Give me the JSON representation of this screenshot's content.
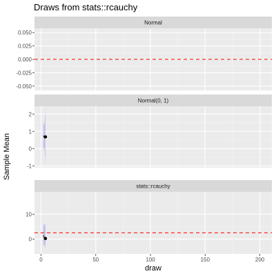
{
  "chart_data": {
    "type": "line",
    "title": "Draws from stats::rcauchy",
    "xlabel": "draw",
    "ylabel": "Sample Mean",
    "xlim": [
      -6,
      211
    ],
    "x_ticks": [
      0,
      50,
      100,
      150,
      200
    ],
    "x_minor_ticks": [
      25,
      75,
      125,
      175
    ],
    "grid": true,
    "colors": {
      "panel_bg": "#ebebeb",
      "grid_major": "#ffffff",
      "grid_minor": "#f5f5f5",
      "strip_bg": "#d9d9d9",
      "ribbon": "#0000ff",
      "point": "#000000",
      "reference_line": "#ff0000"
    },
    "panels": [
      {
        "label": "Normal",
        "ylim": [
          -0.058,
          0.058
        ],
        "y_ticks": [
          -0.05,
          -0.025,
          0.0,
          0.025,
          0.05
        ],
        "y_tick_labels": [
          "-0.050",
          "-0.025",
          "0.000",
          "0.025",
          "0.050"
        ],
        "reference_line": 0,
        "series": []
      },
      {
        "label": "Normal(0, 1)",
        "ylim": [
          -1.1,
          2.45
        ],
        "y_ticks": [
          -1,
          0,
          1,
          2
        ],
        "y_tick_labels": [
          "-1",
          "0",
          "1",
          "2"
        ],
        "reference_line": null,
        "series": [
          {
            "x": [
              2,
              3,
              4
            ],
            "mean": [
              0.75,
              0.65,
              0.68
            ],
            "lower": [
              -0.1,
              0.1,
              -0.9
            ],
            "upper": [
              1.6,
              1.3,
              2.3
            ]
          }
        ]
      },
      {
        "label": "stats::rcauchy",
        "ylim": [
          -6,
          19
        ],
        "y_ticks": [
          0,
          10
        ],
        "y_tick_labels": [
          "0",
          "10"
        ],
        "reference_line": 2.5,
        "series": [
          {
            "x": [
              2,
              3,
              4
            ],
            "mean": [
              1.5,
              0.5,
              0.2
            ],
            "lower": [
              -3,
              -2,
              -4
            ],
            "upper": [
              6,
              5.5,
              6
            ]
          }
        ]
      }
    ]
  }
}
